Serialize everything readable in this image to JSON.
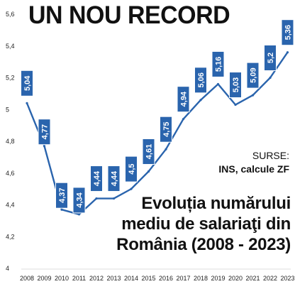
{
  "title": "UN NOU RECORD",
  "source": {
    "label": "SURSE:",
    "value": "INS, calcule ZF"
  },
  "subtitle_lines": [
    "Evoluția numărului",
    "mediu de salariaţi din",
    "România  (2008 - 2023)"
  ],
  "colors": {
    "line": "#2a64ad",
    "label_box": "#2a64ad",
    "label_text": "#ffffff",
    "axis_text": "#222222",
    "grid": "#bbbbbb"
  },
  "chart_data": {
    "type": "line",
    "title": "UN NOU RECORD",
    "xlabel": "",
    "ylabel": "",
    "grid": false,
    "x": [
      "2008",
      "2009",
      "2010",
      "2011",
      "2012",
      "2013",
      "2014",
      "2015",
      "2016",
      "2017",
      "2018",
      "2019",
      "2020",
      "2021",
      "2022",
      "2023"
    ],
    "ylim": [
      4,
      5.6
    ],
    "yticks": [
      "4",
      "4,2",
      "4,4",
      "4,6",
      "4,8",
      "5",
      "5,2",
      "5,4",
      "5,6"
    ],
    "series": [
      {
        "values": [
          5.04,
          4.77,
          4.37,
          4.34,
          4.44,
          4.44,
          4.5,
          4.61,
          4.75,
          4.94,
          5.06,
          5.16,
          5.03,
          5.09,
          5.2,
          5.36
        ],
        "labels": [
          "5,04",
          "4,77",
          "4,37",
          "4,34",
          "4,44",
          "4,44",
          "4,5",
          "4,61",
          "4,75",
          "4,94",
          "5,06",
          "5,16",
          "5,03",
          "5,09",
          "5,2",
          "5,36"
        ],
        "label_positions": [
          "above",
          "below",
          "below",
          "below",
          "above",
          "above",
          "above",
          "above",
          "above",
          "above",
          "above",
          "above",
          "above",
          "above",
          "above",
          "above"
        ]
      }
    ]
  }
}
